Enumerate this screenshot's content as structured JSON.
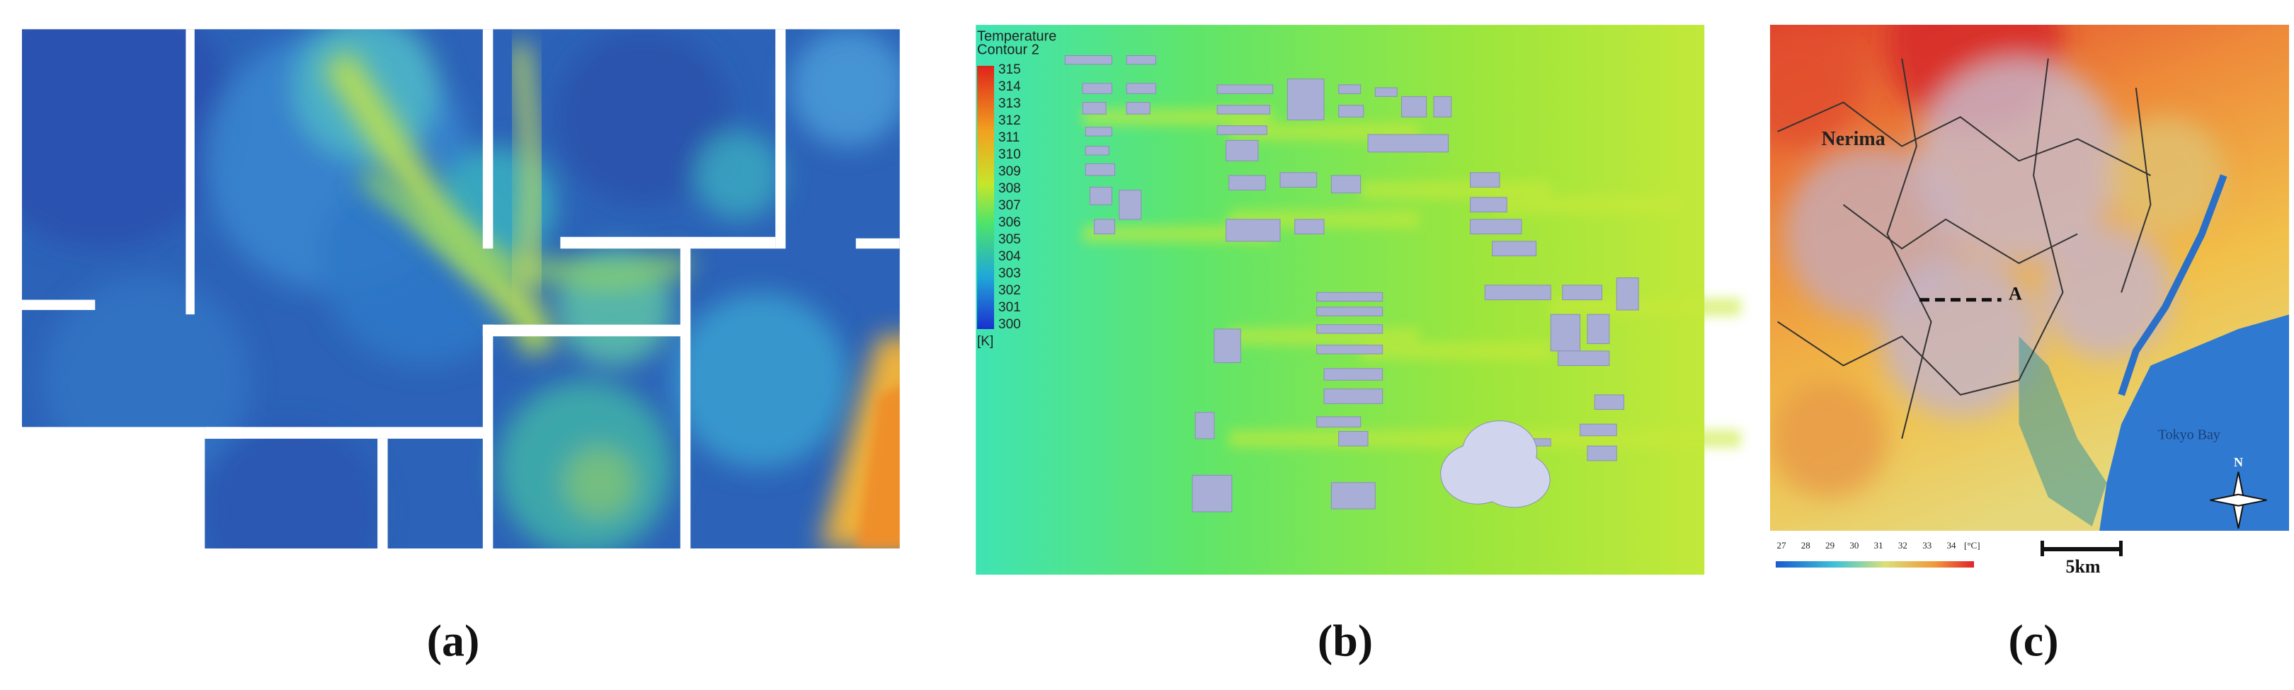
{
  "panels": [
    {
      "label": "(a)"
    },
    {
      "label": "(b)",
      "legend": {
        "title": "Temperature",
        "subtitle": "Contour 2",
        "ticks": [
          315,
          314,
          313,
          312,
          311,
          310,
          309,
          308,
          307,
          306,
          305,
          304,
          303,
          302,
          301,
          300
        ],
        "unit": "[K]"
      }
    },
    {
      "label": "(c)",
      "places": [
        "Nerima",
        "Tokyo Bay"
      ],
      "section": "A",
      "north": "N",
      "legend": {
        "ticks": [
          27,
          28,
          29,
          30,
          31,
          32,
          33,
          34
        ],
        "unit": "[°C]"
      },
      "scale": "5km"
    }
  ]
}
